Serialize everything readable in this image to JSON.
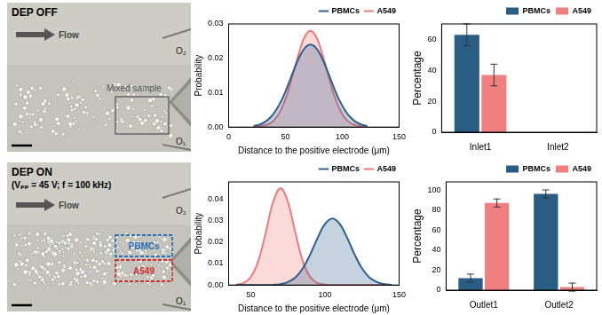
{
  "panels": [
    {
      "title": "DEP OFF",
      "flow_label": "Flow",
      "box_labels": [
        "Mixed sample"
      ],
      "outlets": [
        "O₂",
        "O₁"
      ]
    },
    {
      "title": "DEP ON",
      "subtitle": "(Vₚₚ = 45 V; f = 100 kHz)",
      "flow_label": "Flow",
      "box_labels": [
        "PBMCs",
        "A549"
      ],
      "outlets": [
        "O₂",
        "O₁"
      ]
    }
  ],
  "chart_data": [
    {
      "type": "area",
      "x_label": "Distance to the positive electrode (μm)",
      "y_label": "Probability",
      "x": [
        22,
        27,
        32,
        37,
        42,
        47,
        52,
        57,
        62,
        67,
        72,
        77,
        82,
        87,
        92,
        97,
        102,
        107,
        112,
        117,
        122
      ],
      "series": [
        {
          "name": "PBMCs",
          "color": "#2f5f8f",
          "values": [
            0.0003,
            0.0007,
            0.0015,
            0.0029,
            0.0051,
            0.0081,
            0.012,
            0.0163,
            0.0202,
            0.023,
            0.024,
            0.023,
            0.0202,
            0.0163,
            0.012,
            0.0081,
            0.0051,
            0.0029,
            0.0015,
            0.0007,
            0.0003
          ]
        },
        {
          "name": "A549",
          "color": "#f07a7a",
          "values": [
            0.0001,
            0.0002,
            0.0005,
            0.0012,
            0.0028,
            0.0057,
            0.0101,
            0.0158,
            0.0217,
            0.0263,
            0.028,
            0.0263,
            0.0217,
            0.0158,
            0.0101,
            0.0057,
            0.0028,
            0.0012,
            0.0005,
            0.0002,
            0.0001
          ]
        }
      ],
      "xlim": [
        0,
        150
      ],
      "xticks": [
        0,
        50,
        100,
        150
      ],
      "ylim": [
        0,
        0.03
      ],
      "yticks": [
        {
          "value": 0,
          "label": "0.00"
        },
        {
          "value": 0.01,
          "label": "0.01"
        },
        {
          "value": 0.02,
          "label": "0.02"
        },
        {
          "value": 0.03,
          "label": "0.03"
        }
      ],
      "legend": "top-right"
    },
    {
      "type": "bar",
      "y_label": "Percentage",
      "categories": [
        "Inlet1",
        "Inlet2"
      ],
      "series": [
        {
          "name": "PBMCs",
          "color": "#2a5d84",
          "values": [
            63,
            null
          ],
          "errors": [
            7,
            null
          ]
        },
        {
          "name": "A549",
          "color": "#f08080",
          "values": [
            37,
            null
          ],
          "errors": [
            7,
            null
          ]
        }
      ],
      "ylim": [
        0,
        70
      ],
      "yticks": [
        0,
        20,
        40,
        60
      ],
      "legend": "top-right"
    },
    {
      "type": "area",
      "x_label": "Distance to the positive electrode (μm)",
      "y_label": "Probability",
      "x": [
        40,
        45,
        50,
        55,
        60,
        65,
        70,
        75,
        80,
        85,
        90,
        95,
        100,
        105,
        110,
        115,
        120,
        125,
        130,
        135,
        140,
        145
      ],
      "series": [
        {
          "name": "PBMCs",
          "color": "#2f5f8f",
          "values": [
            0,
            0,
            0,
            0,
            0,
            0.0001,
            0.0004,
            0.0014,
            0.0035,
            0.0077,
            0.0142,
            0.0219,
            0.0284,
            0.031,
            0.0284,
            0.0219,
            0.0142,
            0.0077,
            0.0035,
            0.0014,
            0.0004,
            0.0001
          ]
        },
        {
          "name": "A549",
          "color": "#f07a7a",
          "values": [
            0.0002,
            0.0009,
            0.0038,
            0.0112,
            0.0243,
            0.0386,
            0.045,
            0.0386,
            0.0243,
            0.0112,
            0.0038,
            0.0009,
            0.0002,
            0,
            0,
            0,
            0,
            0,
            0,
            0,
            0,
            0
          ]
        }
      ],
      "xlim": [
        35,
        150
      ],
      "xticks": [
        50,
        100,
        150
      ],
      "ylim": [
        0,
        0.048
      ],
      "yticks": [
        {
          "value": 0,
          "label": "0.00"
        },
        {
          "value": 0.01,
          "label": "0.01"
        },
        {
          "value": 0.02,
          "label": "0.02"
        },
        {
          "value": 0.03,
          "label": "0.03"
        },
        {
          "value": 0.04,
          "label": "0.04"
        }
      ],
      "legend": "top-right"
    },
    {
      "type": "bar",
      "y_label": "Percentage",
      "categories": [
        "Outlet1",
        "Outlet2"
      ],
      "series": [
        {
          "name": "PBMCs",
          "color": "#2a5d84",
          "values": [
            12,
            96
          ],
          "errors": [
            4,
            4
          ]
        },
        {
          "name": "A549",
          "color": "#f08080",
          "values": [
            87,
            3
          ],
          "errors": [
            4,
            4
          ]
        }
      ],
      "ylim": [
        0,
        108
      ],
      "yticks": [
        0,
        20,
        40,
        60,
        80,
        100
      ],
      "legend": "top-right"
    }
  ]
}
